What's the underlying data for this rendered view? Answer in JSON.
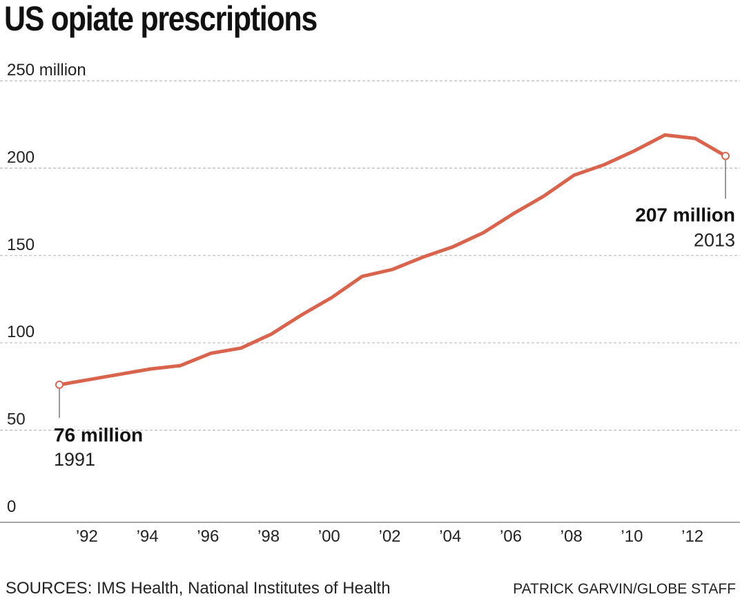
{
  "title": "US opiate prescriptions",
  "source": "SOURCES: IMS Health, National Institutes of Health",
  "credit": "PATRICK GARVIN/GLOBE STAFF",
  "colors": {
    "line": "#d9634c",
    "grid": "#bbbbbb",
    "axis": "#888888",
    "text": "#222222"
  },
  "chart_data": {
    "type": "line",
    "title": "US opiate prescriptions",
    "xlabel": "",
    "ylabel": "",
    "ylim": [
      0,
      250
    ],
    "xlim": [
      1990,
      2014
    ],
    "y_ticks": [
      {
        "value": 0,
        "label": "0"
      },
      {
        "value": 50,
        "label": "50"
      },
      {
        "value": 100,
        "label": "100"
      },
      {
        "value": 150,
        "label": "150"
      },
      {
        "value": 200,
        "label": "200"
      },
      {
        "value": 250,
        "label": "250 million"
      }
    ],
    "x_ticks": [
      {
        "value": 1992,
        "label": "’92"
      },
      {
        "value": 1994,
        "label": "’94"
      },
      {
        "value": 1996,
        "label": "’96"
      },
      {
        "value": 1998,
        "label": "’98"
      },
      {
        "value": 2000,
        "label": "’00"
      },
      {
        "value": 2002,
        "label": "’02"
      },
      {
        "value": 2004,
        "label": "’04"
      },
      {
        "value": 2006,
        "label": "’06"
      },
      {
        "value": 2008,
        "label": "’08"
      },
      {
        "value": 2010,
        "label": "’10"
      },
      {
        "value": 2012,
        "label": "’12"
      }
    ],
    "grid": true,
    "x": [
      1991,
      1992,
      1993,
      1994,
      1995,
      1996,
      1997,
      1998,
      1999,
      2000,
      2001,
      2002,
      2003,
      2004,
      2005,
      2006,
      2007,
      2008,
      2009,
      2010,
      2011,
      2012,
      2013
    ],
    "values": [
      76,
      79,
      82,
      85,
      87,
      94,
      97,
      105,
      116,
      126,
      138,
      142,
      149,
      155,
      163,
      174,
      184,
      196,
      202,
      210,
      219,
      217,
      207
    ],
    "annotations": [
      {
        "x": 1991,
        "y": 76,
        "value_label": "76 million",
        "year_label": "1991",
        "side": "below-left"
      },
      {
        "x": 2013,
        "y": 207,
        "value_label": "207 million",
        "year_label": "2013",
        "side": "below-right"
      }
    ]
  }
}
